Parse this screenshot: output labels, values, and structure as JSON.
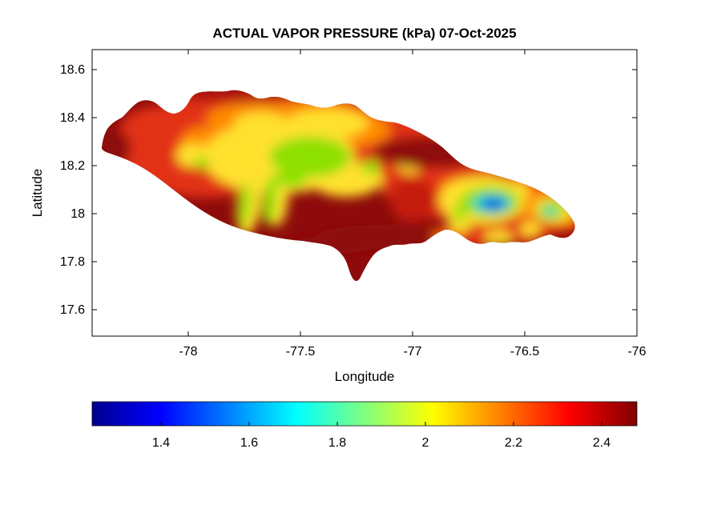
{
  "title": "ACTUAL VAPOR PRESSURE (kPa) 07-Oct-2025",
  "axes": {
    "xlabel": "Longitude",
    "ylabel": "Latitude",
    "x_ticks": [
      "-78",
      "-77.5",
      "-77",
      "-76.5",
      "-76"
    ],
    "y_ticks": [
      "18.6",
      "18.4",
      "18.2",
      "18",
      "17.8",
      "17.6"
    ]
  },
  "colorbar": {
    "ticks": [
      "1.4",
      "1.6",
      "1.8",
      "2",
      "2.2",
      "2.4"
    ],
    "orientation": "horizontal",
    "colormap": "jet",
    "jet_stops": [
      "#00008f",
      "#0000ff",
      "#00ffff",
      "#ffff00",
      "#ff0000",
      "#800000"
    ],
    "jet_offsets": [
      0,
      12.5,
      37.5,
      62.5,
      87.5,
      100
    ]
  },
  "chart_data": {
    "type": "heatmap",
    "title": "ACTUAL VAPOR PRESSURE (kPa) 07-Oct-2025",
    "variable": "actual vapor pressure",
    "units": "kPa",
    "date": "07-Oct-2025",
    "region": "Jamaica",
    "xlabel": "Longitude",
    "ylabel": "Latitude",
    "xlim": [
      -78.43,
      -76.0
    ],
    "ylim": [
      17.49,
      18.68
    ],
    "x_ticks": [
      -78,
      -77.5,
      -77,
      -76.5,
      -76
    ],
    "y_ticks": [
      18.6,
      18.4,
      18.2,
      18,
      17.8,
      17.6
    ],
    "colormap": "jet",
    "clim": [
      1.24,
      2.48
    ],
    "colorbar_ticks": [
      1.4,
      1.6,
      1.8,
      2,
      2.2,
      2.4
    ],
    "legend_position": "horizontal colorbar below plot",
    "grid": false,
    "sampled_points": [
      {
        "lon": -78.35,
        "lat": 18.3,
        "kpa": 2.48
      },
      {
        "lon": -78.0,
        "lat": 18.35,
        "kpa": 2.4
      },
      {
        "lon": -77.7,
        "lat": 18.3,
        "kpa": 2.2
      },
      {
        "lon": -77.55,
        "lat": 18.25,
        "kpa": 2.0
      },
      {
        "lon": -77.45,
        "lat": 18.2,
        "kpa": 1.85
      },
      {
        "lon": -77.4,
        "lat": 18.0,
        "kpa": 2.1
      },
      {
        "lon": -77.1,
        "lat": 17.95,
        "kpa": 2.5
      },
      {
        "lon": -76.95,
        "lat": 18.3,
        "kpa": 2.45
      },
      {
        "lon": -76.65,
        "lat": 18.05,
        "kpa": 1.3
      },
      {
        "lon": -76.6,
        "lat": 18.1,
        "kpa": 1.7
      },
      {
        "lon": -76.35,
        "lat": 18.05,
        "kpa": 2.0
      },
      {
        "lon": -76.3,
        "lat": 17.95,
        "kpa": 2.4
      }
    ]
  }
}
